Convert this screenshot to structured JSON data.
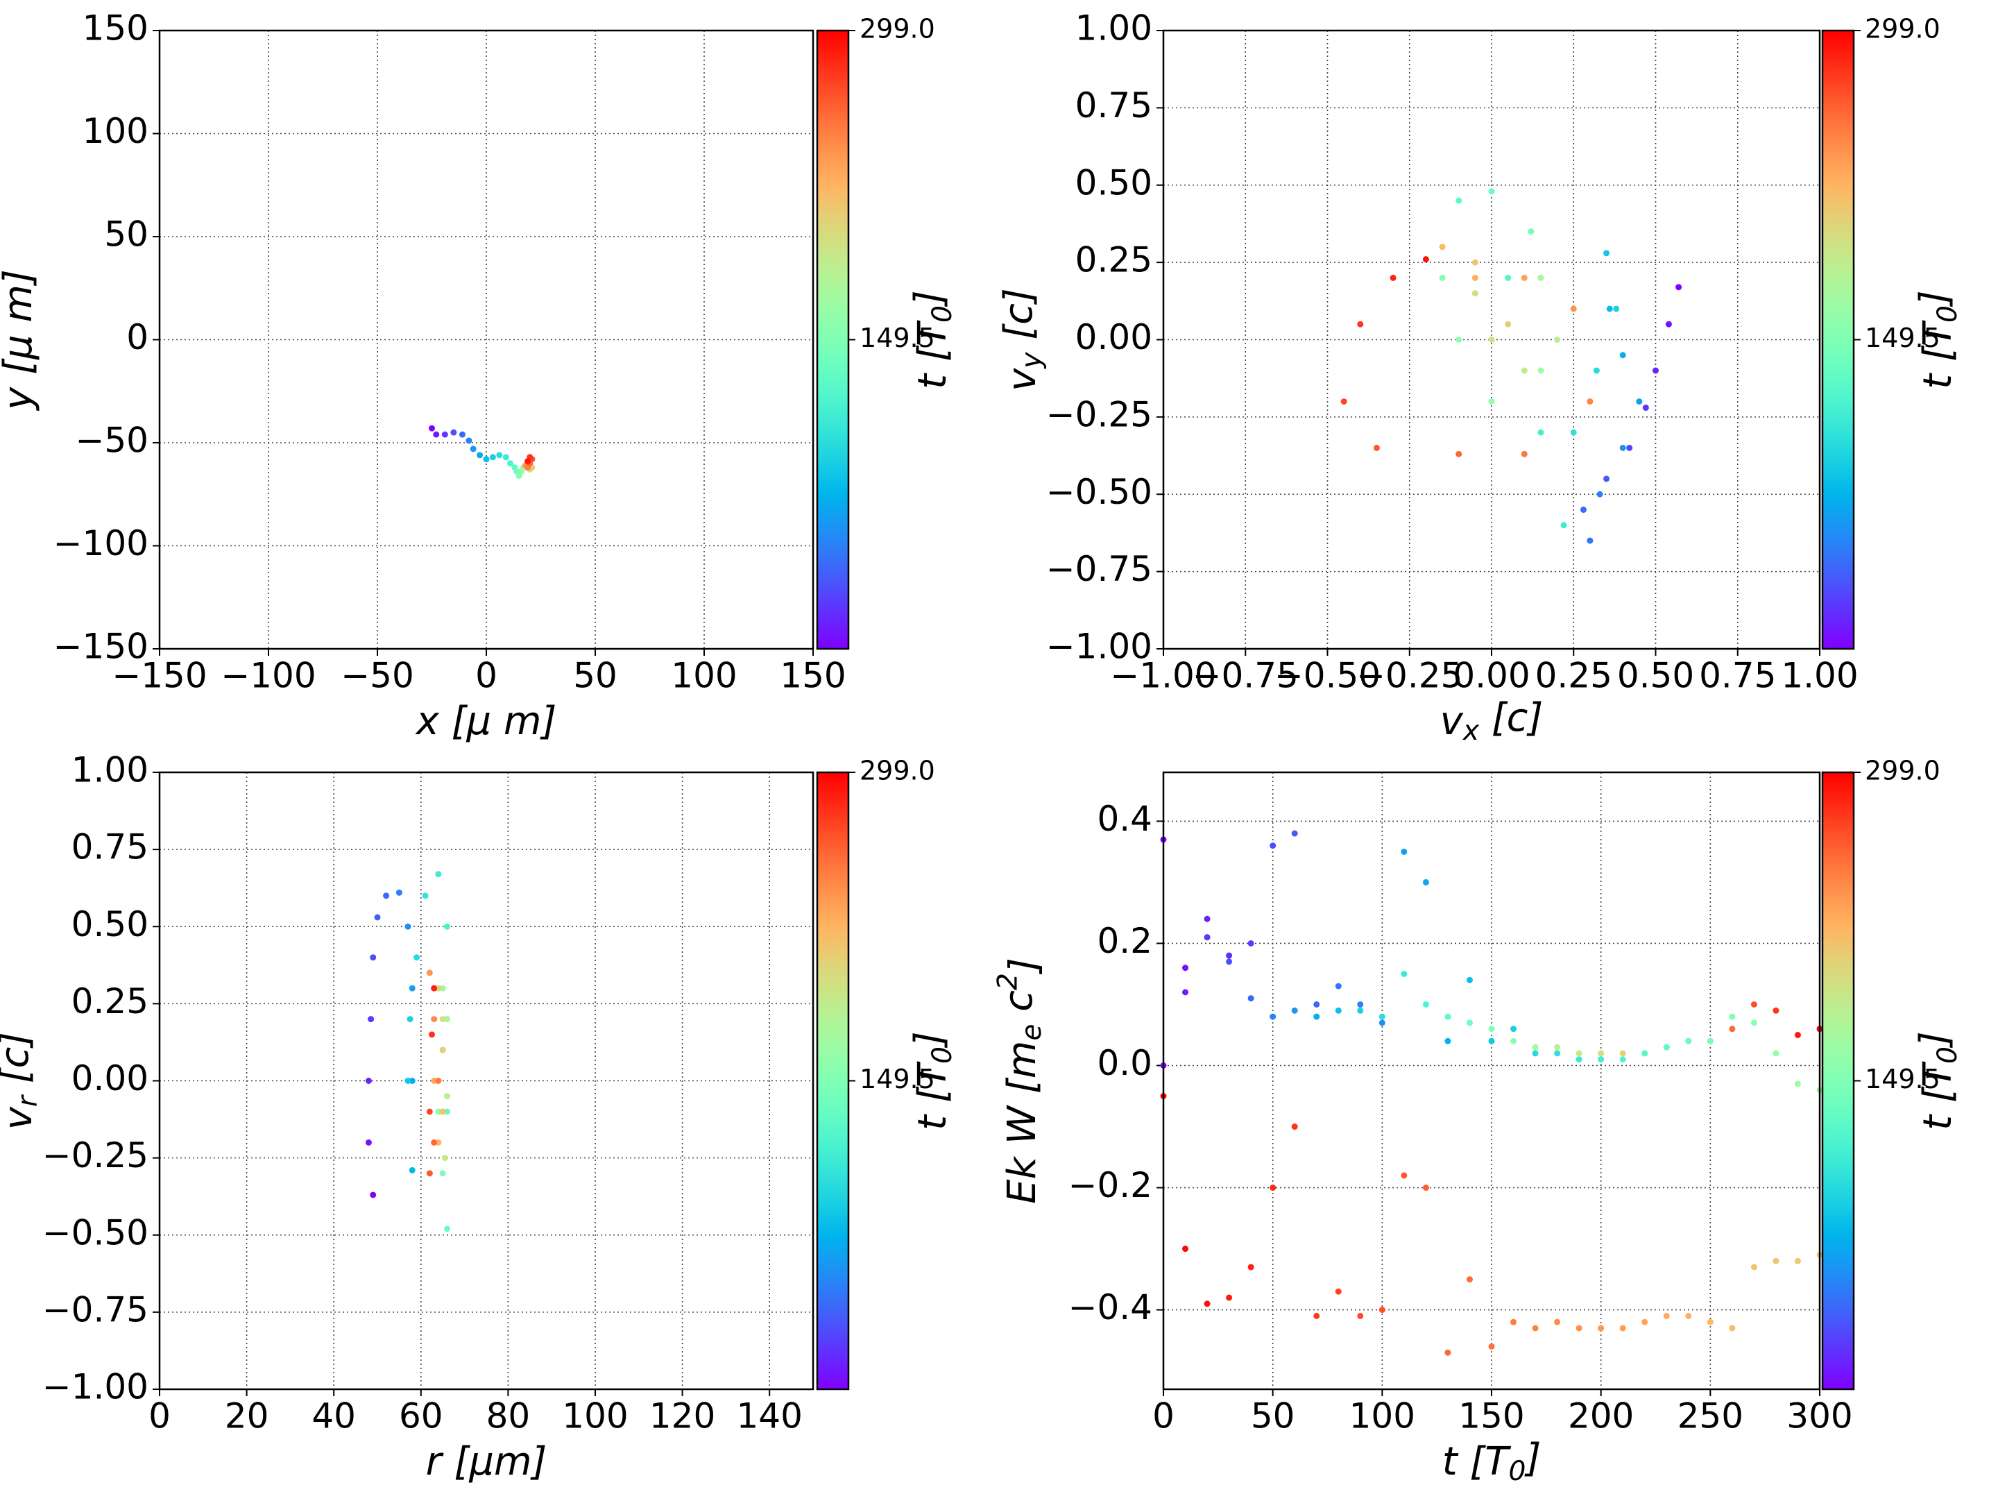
{
  "chart_data": [
    {
      "type": "scatter",
      "x_label": "x  [μ m]",
      "y_label": "y  [μ m]",
      "colormap": "rainbow",
      "grid": true,
      "xlim": [
        -150,
        150
      ],
      "ylim": [
        -150,
        150
      ],
      "xticks": [
        {
          "value": -150,
          "label": "−150"
        },
        {
          "value": -100,
          "label": "−100"
        },
        {
          "value": -50,
          "label": "−50"
        },
        0,
        50,
        100,
        150
      ],
      "yticks": [
        {
          "value": -150,
          "label": "−150"
        },
        {
          "value": -100,
          "label": "−100"
        },
        {
          "value": -50,
          "label": "−50"
        },
        0,
        50,
        100,
        150
      ],
      "colorbar": {
        "label": "t [T_0]",
        "lim": [
          0,
          299
        ],
        "ticks": [
          149.5,
          {
            "value": 299,
            "label": "299.0"
          }
        ]
      },
      "series": [
        {
          "x": [
            -25,
            -23,
            -19,
            -15,
            -11,
            -8,
            -6,
            -3,
            0,
            3,
            6,
            9,
            11,
            13,
            14,
            15,
            16,
            17,
            18,
            19,
            20,
            21,
            20,
            19,
            18,
            19,
            20,
            21,
            20,
            19
          ],
          "values": [
            -43,
            -46,
            -46,
            -45,
            -46,
            -49,
            -53,
            -56,
            -58,
            -57,
            -56,
            -57,
            -60,
            -62,
            -64,
            -66,
            -64,
            -62,
            -61,
            -62,
            -63,
            -62,
            -60,
            -59,
            -61,
            -62,
            -60,
            -58,
            -57,
            -59
          ],
          "c": [
            0,
            10,
            20,
            30,
            40,
            50,
            60,
            70,
            80,
            90,
            100,
            110,
            120,
            130,
            140,
            150,
            160,
            170,
            180,
            190,
            200,
            210,
            220,
            230,
            240,
            250,
            260,
            270,
            280,
            290
          ]
        }
      ]
    },
    {
      "type": "scatter",
      "x_label": "v_x [c]",
      "y_label": "v_y [c]",
      "colormap": "rainbow",
      "grid": true,
      "xlim": [
        -1,
        1
      ],
      "ylim": [
        -1,
        1
      ],
      "xticks": [
        {
          "value": -1,
          "label": "−1.00"
        },
        {
          "value": -0.75,
          "label": "−0.75"
        },
        {
          "value": -0.5,
          "label": "−0.50"
        },
        {
          "value": -0.25,
          "label": "−0.25"
        },
        {
          "value": 0,
          "label": "0.00"
        },
        0.25,
        {
          "value": 0.5,
          "label": "0.50"
        },
        0.75,
        {
          "value": 1,
          "label": "1.00"
        }
      ],
      "yticks": [
        {
          "value": -1,
          "label": "−1.00"
        },
        {
          "value": -0.75,
          "label": "−0.75"
        },
        {
          "value": -0.5,
          "label": "−0.50"
        },
        {
          "value": -0.25,
          "label": "−0.25"
        },
        {
          "value": 0,
          "label": "0.00"
        },
        0.25,
        {
          "value": 0.5,
          "label": "0.50"
        },
        0.75,
        {
          "value": 1,
          "label": "1.00"
        }
      ],
      "colorbar": {
        "label": "t [T_0]",
        "lim": [
          0,
          299
        ],
        "ticks": [
          149.5,
          {
            "value": 299,
            "label": "299.0"
          }
        ]
      },
      "series": [
        {
          "x": [
            0.57,
            0.54,
            0.5,
            0.47,
            0.42,
            0.35,
            0.28,
            0.3,
            0.33,
            0.4,
            0.45,
            0.4,
            0.36,
            0.35,
            0.38,
            0.32,
            0.25,
            0.22,
            0.15,
            0.05,
            -0.1,
            0.0,
            0.12,
            -0.15,
            -0.1,
            0.0,
            0.15,
            0.15,
            0.2,
            0.1,
            0.0,
            -0.05,
            0.05,
            -0.05,
            -0.15,
            -0.05,
            0.1,
            0.25,
            0.3,
            0.1,
            -0.1,
            -0.35,
            -0.45,
            -0.4,
            -0.3,
            -0.2
          ],
          "values": [
            0.17,
            0.05,
            -0.1,
            -0.22,
            -0.35,
            -0.45,
            -0.55,
            -0.65,
            -0.5,
            -0.35,
            -0.2,
            -0.05,
            0.1,
            0.28,
            0.1,
            -0.1,
            -0.3,
            -0.6,
            -0.3,
            0.2,
            0.45,
            0.48,
            0.35,
            0.2,
            0.0,
            -0.2,
            -0.1,
            0.2,
            0.0,
            -0.1,
            0.0,
            0.15,
            0.05,
            0.25,
            0.3,
            0.2,
            0.2,
            0.1,
            -0.2,
            -0.37,
            -0.37,
            -0.35,
            -0.2,
            0.05,
            0.2,
            0.26
          ],
          "c": [
            0,
            6.5,
            13,
            19.5,
            26,
            32.5,
            39,
            45.5,
            52,
            58.5,
            65,
            71.5,
            78,
            84.5,
            91,
            97.5,
            104,
            110.5,
            117,
            123.5,
            130,
            136.5,
            143,
            149.5,
            156,
            162.5,
            169,
            175.5,
            182,
            188.5,
            195,
            201.5,
            208,
            214.5,
            221,
            227.5,
            234,
            240.5,
            247,
            253.5,
            260,
            266.5,
            273,
            279.5,
            286,
            292.5
          ]
        }
      ]
    },
    {
      "type": "scatter",
      "x_label": "r [μm]",
      "y_label": "v_r [c]",
      "colormap": "rainbow",
      "grid": true,
      "xlim": [
        0,
        150
      ],
      "ylim": [
        -1,
        1
      ],
      "xticks": [
        0,
        20,
        40,
        60,
        80,
        100,
        120,
        140
      ],
      "yticks": [
        {
          "value": -1,
          "label": "−1.00"
        },
        {
          "value": -0.75,
          "label": "−0.75"
        },
        {
          "value": -0.5,
          "label": "−0.50"
        },
        {
          "value": -0.25,
          "label": "−0.25"
        },
        {
          "value": 0,
          "label": "0.00"
        },
        0.25,
        {
          "value": 0.5,
          "label": "0.50"
        },
        0.75,
        {
          "value": 1,
          "label": "1.00"
        }
      ],
      "colorbar": {
        "label": "t [T_0]",
        "lim": [
          0,
          299
        ],
        "ticks": [
          149.5,
          {
            "value": 299,
            "label": "299.0"
          }
        ]
      },
      "series": [
        {
          "x": [
            49,
            48,
            48,
            48.5,
            49,
            50,
            52,
            55,
            57,
            58,
            58,
            58,
            57,
            57.5,
            59,
            61,
            64,
            66,
            66,
            66,
            66,
            65,
            64,
            65,
            65,
            66,
            66,
            65.5,
            65,
            64,
            65,
            65,
            64,
            63,
            62,
            63,
            64,
            63,
            62,
            62,
            62.5,
            63
          ],
          "values": [
            -0.37,
            -0.2,
            0.0,
            0.2,
            0.4,
            0.53,
            0.6,
            0.61,
            0.5,
            0.3,
            0.0,
            -0.29,
            0.0,
            0.2,
            0.4,
            0.6,
            0.67,
            0.5,
            0.2,
            -0.1,
            -0.48,
            -0.3,
            -0.1,
            0.1,
            0.3,
            0.2,
            -0.05,
            -0.25,
            0.2,
            0.3,
            0.1,
            -0.1,
            -0.2,
            0.0,
            0.35,
            0.2,
            0.0,
            -0.2,
            -0.3,
            -0.1,
            0.15,
            0.3
          ],
          "c": [
            0,
            7,
            14,
            21,
            28,
            35,
            42,
            49,
            56,
            63,
            70,
            77,
            84,
            91,
            98,
            105,
            112,
            119,
            126,
            133,
            140,
            147,
            154,
            161,
            168,
            175,
            182,
            189,
            196,
            203,
            210,
            217,
            224,
            231,
            238,
            245,
            252,
            259,
            266,
            273,
            280,
            287
          ]
        }
      ]
    },
    {
      "type": "scatter",
      "x_label": "t [T_0]",
      "y_label": "Ek W [m_e c^2]",
      "colormap": "rainbow",
      "grid": true,
      "xlim": [
        0,
        300
      ],
      "ylim": [
        -0.53,
        0.48
      ],
      "xticks": [
        0,
        50,
        100,
        150,
        200,
        250,
        300
      ],
      "yticks": [
        {
          "value": -0.4,
          "label": "−0.4"
        },
        {
          "value": -0.2,
          "label": "−0.2"
        },
        {
          "value": 0,
          "label": "0.0"
        },
        0.2,
        0.4
      ],
      "colorbar": {
        "label": "t [T_0]",
        "lim": [
          0,
          299
        ],
        "ticks": [
          149.5,
          {
            "value": 299,
            "label": "299.0"
          }
        ]
      },
      "series": [
        {
          "x": [
            0,
            10,
            20,
            30,
            40,
            50,
            60,
            70,
            80,
            90,
            100,
            110,
            120,
            130,
            140,
            150,
            160,
            170,
            180,
            190,
            200,
            210,
            220,
            230,
            240,
            250,
            260,
            270,
            280,
            290,
            300
          ],
          "values": [
            0.0,
            0.12,
            0.21,
            0.17,
            0.11,
            0.08,
            0.09,
            0.08,
            0.09,
            0.09,
            0.08,
            0.15,
            0.1,
            0.08,
            0.07,
            0.06,
            0.04,
            0.03,
            0.03,
            0.02,
            0.02,
            0.02,
            0.02,
            0.03,
            0.04,
            0.04,
            0.06,
            0.1,
            0.09,
            0.05,
            0.06
          ],
          "c": [
            0,
            10,
            20,
            30,
            40,
            50,
            60,
            70,
            80,
            90,
            100,
            110,
            120,
            130,
            140,
            150,
            160,
            170,
            180,
            190,
            200,
            210,
            220,
            230,
            240,
            250,
            260,
            270,
            280,
            290,
            299
          ]
        },
        {
          "x": [
            0,
            10,
            20,
            30,
            40,
            50,
            60,
            70,
            80,
            90,
            100,
            110,
            120,
            130,
            140,
            150,
            160,
            170,
            180,
            190,
            200,
            210,
            220,
            230,
            240,
            250,
            260,
            270,
            280,
            290,
            300
          ],
          "values": [
            0.37,
            0.16,
            0.24,
            0.18,
            0.2,
            0.36,
            0.38,
            0.1,
            0.13,
            0.1,
            0.07,
            0.35,
            0.3,
            0.04,
            0.14,
            0.04,
            0.06,
            0.02,
            0.02,
            0.01,
            0.01,
            0.01,
            0.02,
            0.03,
            0.04,
            0.04,
            0.08,
            0.07,
            0.02,
            -0.03,
            -0.04
          ],
          "c": [
            0,
            6,
            11,
            17,
            23,
            29,
            34,
            40,
            46,
            51,
            57,
            63,
            69,
            74,
            80,
            86,
            91,
            97,
            103,
            109,
            114,
            120,
            126,
            131,
            137,
            143,
            149,
            154,
            160,
            166,
            171
          ]
        },
        {
          "x": [
            0,
            10,
            20,
            30,
            40,
            50,
            60,
            70,
            80,
            90,
            100,
            110,
            120,
            130,
            140,
            150,
            160,
            170,
            180,
            190,
            200,
            210,
            220,
            230,
            240,
            250,
            260,
            270,
            280,
            290,
            300
          ],
          "values": [
            -0.05,
            -0.3,
            -0.39,
            -0.38,
            -0.33,
            -0.2,
            -0.1,
            -0.41,
            -0.37,
            -0.41,
            -0.4,
            -0.18,
            -0.2,
            -0.47,
            -0.35,
            -0.46,
            -0.42,
            -0.43,
            -0.42,
            -0.43,
            -0.43,
            -0.43,
            -0.42,
            -0.41,
            -0.41,
            -0.42,
            -0.43,
            -0.33,
            -0.32,
            -0.32,
            -0.31
          ],
          "c": [
            299,
            296,
            293,
            290,
            287,
            284,
            281,
            278,
            275,
            272,
            269,
            266,
            263,
            260,
            257,
            254,
            251,
            248,
            245,
            242,
            239,
            236,
            233,
            230,
            227,
            224,
            221,
            218,
            215,
            212,
            209
          ]
        }
      ]
    }
  ]
}
